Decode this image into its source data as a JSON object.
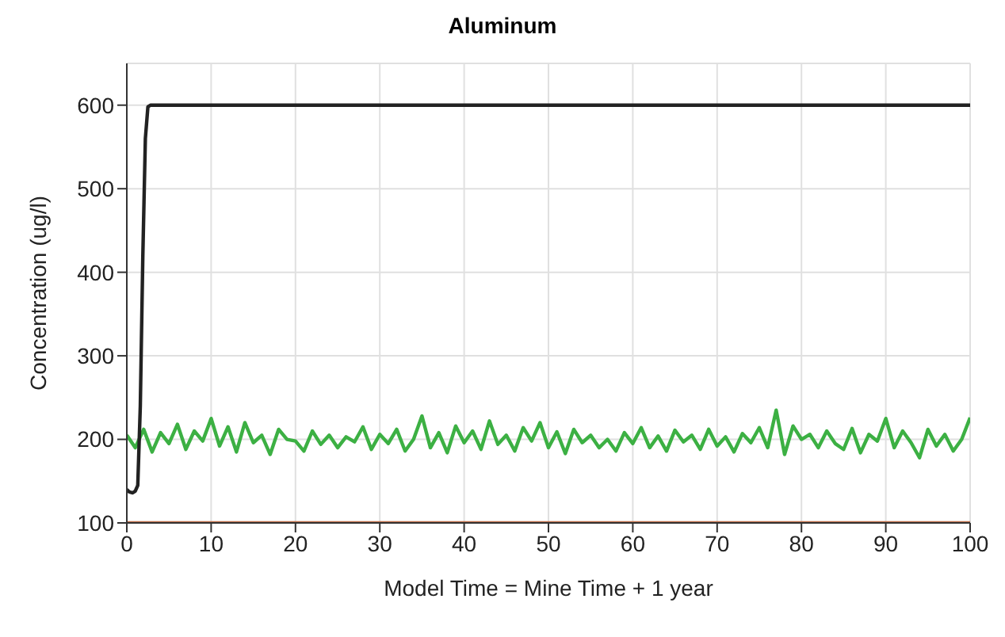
{
  "chart_data": {
    "type": "line",
    "title": "Aluminum",
    "xlabel": "Model Time = Mine Time + 1 year",
    "ylabel": "Concentration (ug/l)",
    "xlim": [
      0,
      100
    ],
    "xticks": [
      0,
      10,
      20,
      30,
      40,
      50,
      60,
      70,
      80,
      90,
      100
    ],
    "ylim": [
      100,
      650
    ],
    "yticks": [
      100,
      200,
      300,
      400,
      500,
      600
    ],
    "grid": true,
    "marker": "none",
    "line_style": "solid",
    "series": [
      {
        "color": "#3cb043",
        "x": [
          0,
          1,
          2,
          3,
          4,
          5,
          6,
          7,
          8,
          9,
          10,
          11,
          12,
          13,
          14,
          15,
          16,
          17,
          18,
          19,
          20,
          21,
          22,
          23,
          24,
          25,
          26,
          27,
          28,
          29,
          30,
          31,
          32,
          33,
          34,
          35,
          36,
          37,
          38,
          39,
          40,
          41,
          42,
          43,
          44,
          45,
          46,
          47,
          48,
          49,
          50,
          51,
          52,
          53,
          54,
          55,
          56,
          57,
          58,
          59,
          60,
          61,
          62,
          63,
          64,
          65,
          66,
          67,
          68,
          69,
          70,
          71,
          72,
          73,
          74,
          75,
          76,
          77,
          78,
          79,
          80,
          81,
          82,
          83,
          84,
          85,
          86,
          87,
          88,
          89,
          90,
          91,
          92,
          93,
          94,
          95,
          96,
          97,
          98,
          99,
          100
        ],
        "values": [
          205,
          190,
          212,
          185,
          208,
          195,
          218,
          188,
          210,
          198,
          225,
          192,
          215,
          185,
          220,
          196,
          205,
          182,
          212,
          200,
          198,
          186,
          210,
          194,
          205,
          190,
          203,
          197,
          215,
          188,
          206,
          195,
          212,
          186,
          200,
          228,
          190,
          208,
          184,
          216,
          196,
          210,
          188,
          222,
          194,
          205,
          186,
          214,
          198,
          220,
          190,
          209,
          183,
          212,
          196,
          205,
          190,
          200,
          186,
          208,
          195,
          214,
          190,
          204,
          186,
          211,
          197,
          205,
          188,
          212,
          192,
          203,
          185,
          207,
          196,
          214,
          190,
          235,
          182,
          216,
          200,
          206,
          190,
          210,
          195,
          188,
          213,
          184,
          206,
          198,
          225,
          190,
          210,
          196,
          178,
          212,
          192,
          206,
          186,
          200,
          226
        ]
      },
      {
        "color": "#222222",
        "x": [
          0,
          0.3,
          0.7,
          1,
          1.3,
          1.6,
          1.9,
          2.2,
          2.5,
          2.8,
          100
        ],
        "values": [
          140,
          137,
          136,
          138,
          145,
          240,
          420,
          560,
          598,
          600,
          600
        ]
      },
      {
        "color": "#c0704a",
        "x": [
          0,
          100
        ],
        "values": [
          100,
          100
        ]
      }
    ]
  }
}
